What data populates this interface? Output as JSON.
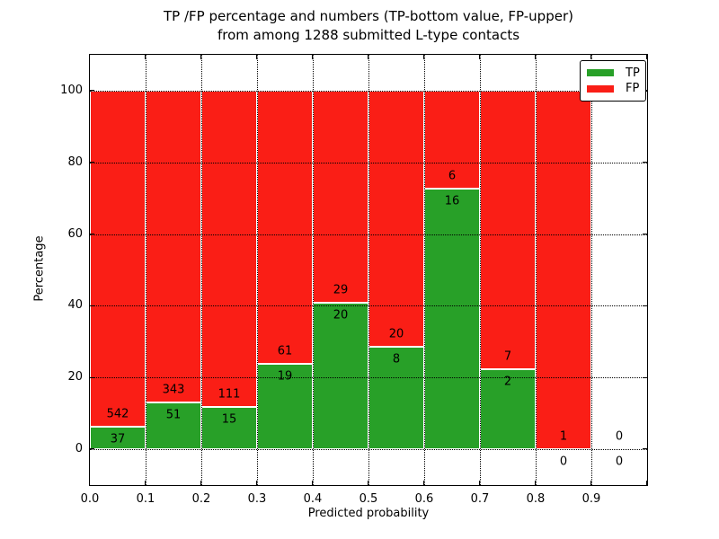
{
  "figure": {
    "title_line1": "TP /FP percentage and numbers (TP-bottom value, FP-upper)",
    "title_line2": "from among 1288 submitted L-type contacts",
    "xlabel": "Predicted probability",
    "ylabel": "Percentage"
  },
  "chart_data": {
    "type": "bar",
    "stacked": true,
    "title": "TP /FP percentage and numbers (TP-bottom value, FP-upper) from among 1288 submitted L-type contacts",
    "xlabel": "Predicted probability",
    "ylabel": "Percentage",
    "total_contacts": 1288,
    "bins": [
      0.0,
      0.1,
      0.2,
      0.3,
      0.4,
      0.5,
      0.6,
      0.7,
      0.8,
      0.9
    ],
    "bin_width": 0.1,
    "series": [
      {
        "name": "TP",
        "color": "#28a028",
        "counts": [
          37,
          51,
          15,
          19,
          20,
          8,
          16,
          2,
          0,
          0
        ]
      },
      {
        "name": "FP",
        "color": "#fa1e16",
        "counts": [
          542,
          343,
          111,
          61,
          29,
          20,
          6,
          7,
          1,
          0
        ]
      }
    ],
    "tp_percentages": [
      6.4,
      12.9,
      11.9,
      23.8,
      40.8,
      28.6,
      72.7,
      22.2,
      0.0,
      null
    ],
    "xticks": [
      "0.0",
      "0.1",
      "0.2",
      "0.3",
      "0.4",
      "0.5",
      "0.6",
      "0.7",
      "0.8",
      "0.9"
    ],
    "yticks": [
      0,
      20,
      40,
      60,
      80,
      100
    ],
    "xlim": [
      0.0,
      1.0
    ],
    "ylim": [
      -10,
      110
    ],
    "grid": {
      "style": "dotted",
      "color": "#000000"
    },
    "bar_edge_color": "#ffffff",
    "legend": {
      "position": "upper-right",
      "entries": [
        {
          "label": "TP",
          "color": "#28a028"
        },
        {
          "label": "FP",
          "color": "#fa1e16"
        }
      ]
    }
  }
}
